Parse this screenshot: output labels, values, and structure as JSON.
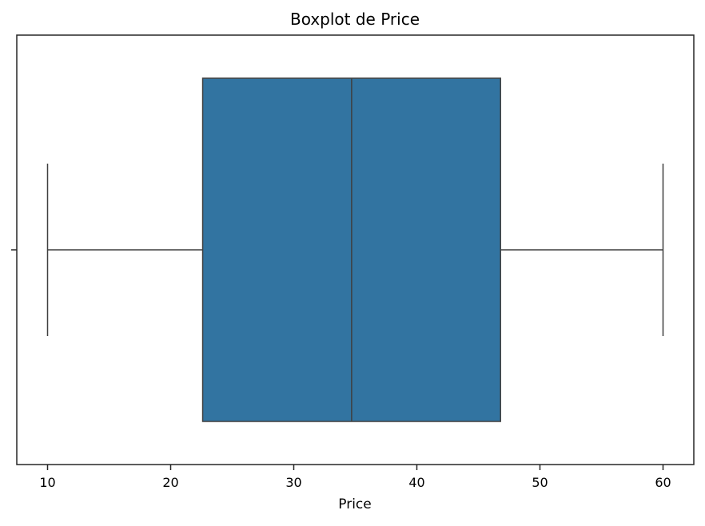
{
  "chart_data": {
    "type": "boxplot",
    "title": "Boxplot de Price",
    "xlabel": "Price",
    "ylabel": "",
    "xlim": [
      7.5,
      62.5
    ],
    "xticks": [
      10,
      20,
      30,
      40,
      50,
      60
    ],
    "orientation": "horizontal",
    "grid": false,
    "stats": {
      "min": 10,
      "q1": 22.6,
      "median": 34.7,
      "q3": 46.8,
      "max": 60
    },
    "box_color": "#3274a1",
    "line_color": "#3f3f3f"
  }
}
